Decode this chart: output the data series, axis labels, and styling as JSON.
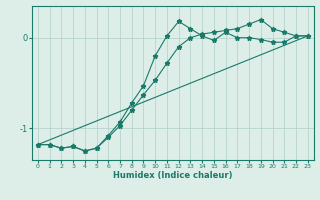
{
  "xlabel": "Humidex (Indice chaleur)",
  "bg_color": "#ddeee8",
  "line_color": "#1a7a6a",
  "grid_color": "#b0cfc8",
  "xticks": [
    0,
    1,
    2,
    3,
    4,
    5,
    6,
    7,
    8,
    9,
    10,
    11,
    12,
    13,
    14,
    15,
    16,
    17,
    18,
    19,
    20,
    21,
    22,
    23
  ],
  "yticks": [
    -1,
    0
  ],
  "xlim": [
    -0.5,
    23.5
  ],
  "ylim": [
    -1.35,
    0.35
  ],
  "series1_x": [
    0,
    1,
    2,
    3,
    4,
    5,
    6,
    7,
    8,
    9,
    10,
    11,
    12,
    13,
    14,
    15,
    16,
    17,
    18,
    19,
    20,
    21,
    22,
    23
  ],
  "series1_y": [
    -1.18,
    -1.18,
    -1.22,
    -1.2,
    -1.25,
    -1.22,
    -1.08,
    -0.93,
    -0.72,
    -0.53,
    -0.2,
    0.02,
    0.18,
    0.1,
    0.02,
    -0.03,
    0.06,
    0.0,
    0.0,
    -0.02,
    -0.05,
    -0.05,
    0.02,
    0.02
  ],
  "series2_x": [
    0,
    1,
    2,
    3,
    4,
    5,
    6,
    7,
    8,
    9,
    10,
    11,
    12,
    13,
    14,
    15,
    16,
    17,
    18,
    19,
    20,
    21,
    22,
    23
  ],
  "series2_y": [
    -1.18,
    -1.18,
    -1.22,
    -1.2,
    -1.25,
    -1.22,
    -1.1,
    -0.97,
    -0.8,
    -0.63,
    -0.47,
    -0.28,
    -0.1,
    0.0,
    0.04,
    0.06,
    0.08,
    0.1,
    0.15,
    0.2,
    0.1,
    0.06,
    0.02,
    0.02
  ],
  "series3_x": [
    0,
    23
  ],
  "series3_y": [
    -1.18,
    0.02
  ],
  "figsize": [
    3.2,
    2.0
  ],
  "dpi": 100
}
